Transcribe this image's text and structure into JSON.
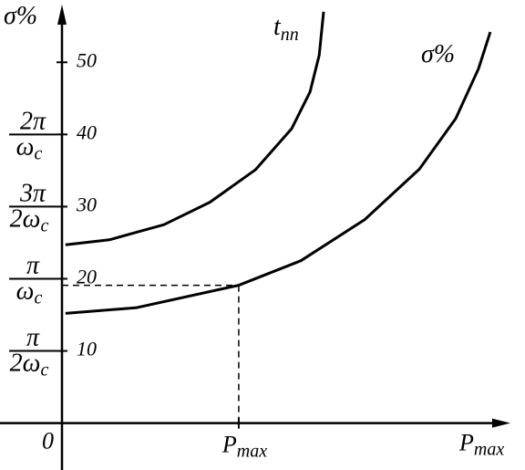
{
  "chart_data": {
    "type": "line",
    "y_axis_label": "σ%",
    "x_axis_label": {
      "main": "P",
      "sub": "max"
    },
    "origin_label": "0",
    "xlim": [
      0,
      1
    ],
    "ylim": [
      -6.5,
      58
    ],
    "yticks": [
      10,
      20,
      30,
      40,
      50
    ],
    "y_alt_labels": [
      {
        "value": 10,
        "num": "π",
        "den": "2ω",
        "sub": "c"
      },
      {
        "value": 20,
        "num": "π",
        "den": "ω",
        "sub": "c"
      },
      {
        "value": 30,
        "num": "3π",
        "den": "2ω",
        "sub": "c"
      },
      {
        "value": 40,
        "num": "2π",
        "den": "ω",
        "sub": "c"
      }
    ],
    "series": [
      {
        "name": "t",
        "name_sub": "пп",
        "color": "#000000",
        "x": [
          0.008,
          0.108,
          0.233,
          0.338,
          0.442,
          0.525,
          0.567,
          0.588,
          0.598
        ],
        "values": [
          24.7,
          25.4,
          27.5,
          30.6,
          35.1,
          40.8,
          45.9,
          51.0,
          57.0
        ]
      },
      {
        "name": "σ%",
        "color": "#000000",
        "x": [
          0.008,
          0.171,
          0.404,
          0.546,
          0.692,
          0.817,
          0.9,
          0.952,
          0.979
        ],
        "values": [
          15.2,
          16.0,
          19.1,
          22.5,
          28.2,
          35.2,
          42.2,
          49.1,
          54.2
        ]
      }
    ],
    "marker": {
      "x": 0.404,
      "y": 19.1,
      "label": {
        "main": "P",
        "sub": "max"
      }
    }
  }
}
